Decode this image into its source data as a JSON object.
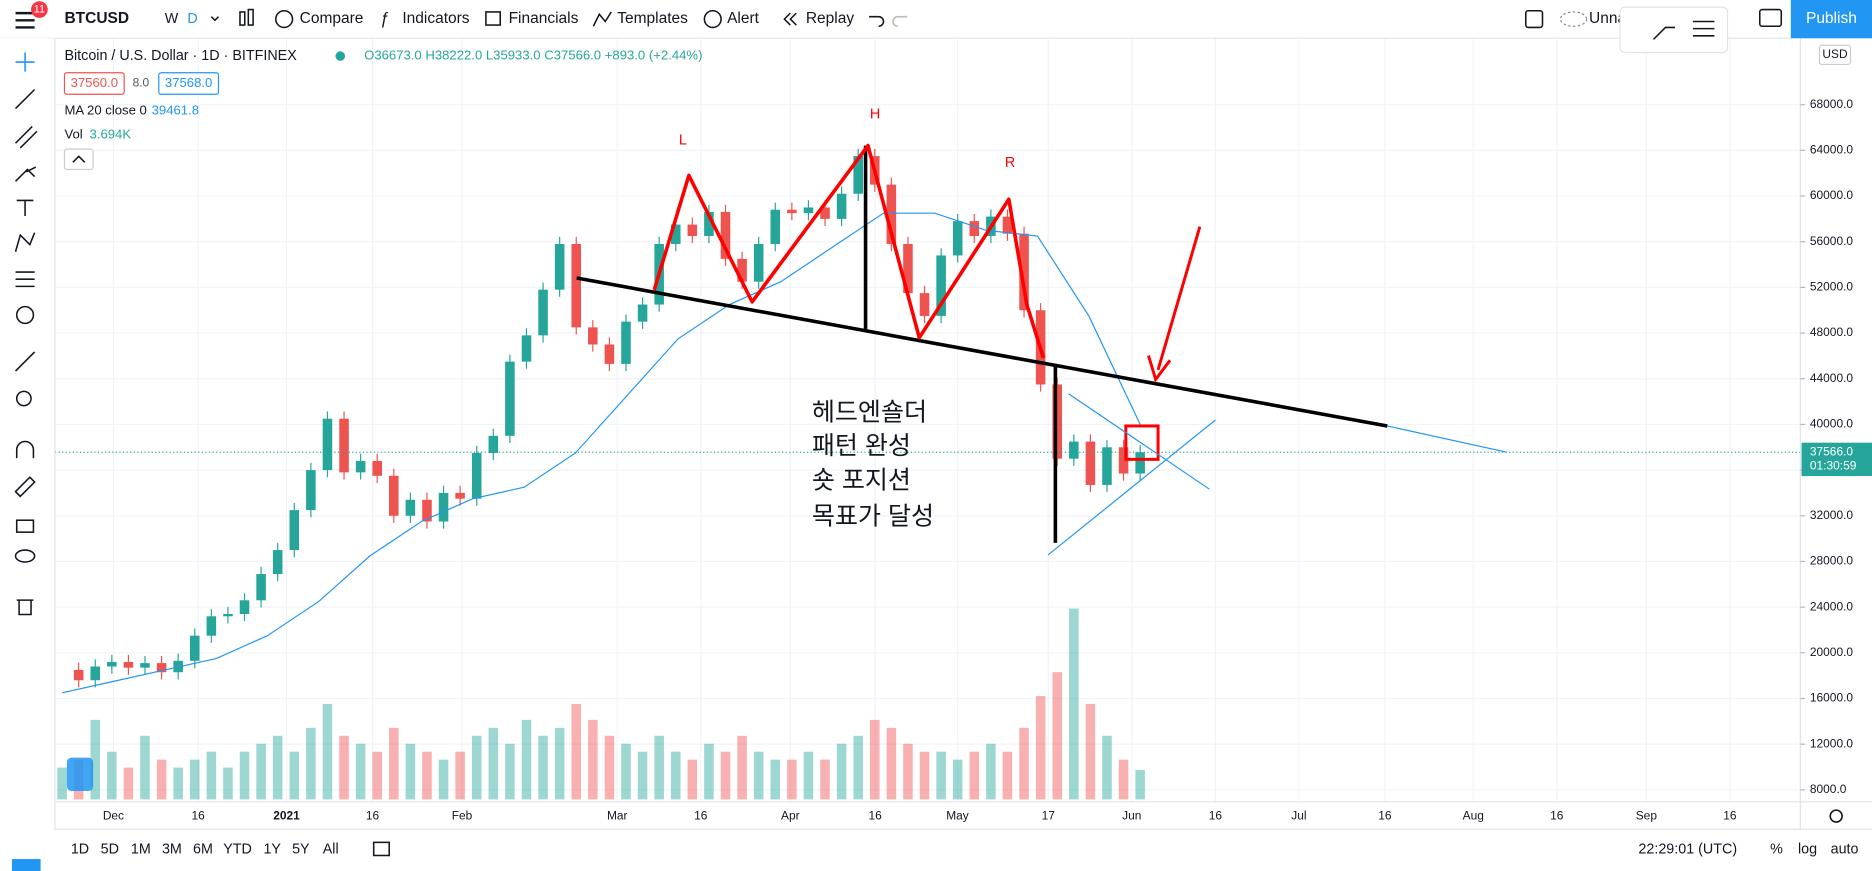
{
  "ui": {
    "badge": "11",
    "symbol": "BTCUSD",
    "interval_w": "W",
    "interval_d": "D",
    "compare": "Compare",
    "indicators": "Indicators",
    "financials": "Financials",
    "templates": "Templates",
    "alert": "Alert",
    "replay": "Replay",
    "layout_name": "Unna",
    "publish": "Publish",
    "legend_title": "Bitcoin / U.S. Dollar · 1D · BITFINEX",
    "ohlc": "O36673.0 H38222.0 L35933.0 C37566.0 +893.0 (+2.44%)",
    "bid": "37560.0",
    "spread": "8.0",
    "ask": "37568.0",
    "ma_label": "MA 20 close 0",
    "ma_value": "39461.8",
    "vol_label": "Vol",
    "vol_value": "3.694K",
    "currency": "USD",
    "countdown": "01:30:59",
    "ranges": [
      "1D",
      "5D",
      "1M",
      "3M",
      "6M",
      "YTD",
      "1Y",
      "5Y",
      "All"
    ],
    "clock": "22:29:01 (UTC)",
    "percent": "%",
    "log": "log",
    "auto": "auto",
    "annotation_letters": [
      "L",
      "H",
      "R"
    ],
    "annotation_text": [
      "헤드엔숄더",
      "패턴 완성",
      "숏 포지션",
      "목표가 달성"
    ]
  },
  "chart_data": {
    "type": "candlestick",
    "title": "BTCUSD 1D",
    "ylim": [
      6955,
      73823
    ],
    "yticks": [
      {
        "value": 8000,
        "label": "8000.0"
      },
      {
        "value": 12000,
        "label": "12000.0"
      },
      {
        "value": 16000,
        "label": "16000.0"
      },
      {
        "value": 20000,
        "label": "20000.0"
      },
      {
        "value": 24000,
        "label": "24000.0"
      },
      {
        "value": 28000,
        "label": "28000.0"
      },
      {
        "value": 32000,
        "label": "32000.0"
      },
      {
        "value": 36000,
        "label": "36000.0"
      },
      {
        "value": 40000,
        "label": "40000.0"
      },
      {
        "value": 44000,
        "label": "44000.0"
      },
      {
        "value": 48000,
        "label": "48000.0"
      },
      {
        "value": 52000,
        "label": "52000.0"
      },
      {
        "value": 56000,
        "label": "56000.0"
      },
      {
        "value": 60000,
        "label": "60000.0"
      },
      {
        "value": 64000,
        "label": "64000.0"
      },
      {
        "value": 68000,
        "label": "68000.0"
      }
    ],
    "x_tick_labels": [
      "Dec",
      "16",
      "2021",
      "16",
      "Feb",
      "Mar",
      "16",
      "Apr",
      "16",
      "May",
      "17",
      "Jun",
      "16",
      "Jul",
      "16",
      "Aug",
      "16",
      "Sep",
      "16"
    ],
    "last_price": {
      "value": 37566,
      "label": "37566.0"
    },
    "grid": true,
    "series": [
      {
        "name": "BTCUSD",
        "up_color": "#26a69a",
        "down_color": "#ef5350",
        "values": [
          18500,
          17600,
          18800,
          19200,
          18700,
          19100,
          18300,
          19300,
          21500,
          23200,
          23400,
          24600,
          26900,
          29000,
          32500,
          36000,
          40500,
          35800,
          36800,
          35500,
          32000,
          33400,
          31500,
          34000,
          33500,
          37500,
          39000,
          45500,
          47800,
          51800,
          55800,
          48500,
          47000,
          45300,
          49000,
          50500,
          55800,
          57500,
          56500,
          58600,
          54500,
          52500,
          55800,
          58800,
          58500,
          59000,
          58000,
          60200,
          63500,
          61000,
          55800,
          51500,
          49500,
          54800,
          57800,
          56500,
          58200,
          56700,
          50000,
          43500,
          37000,
          38500,
          34700,
          38000,
          35700,
          37566
        ]
      },
      {
        "name": "MA 20",
        "color": "#2196f3",
        "values": [
          16500,
          17500,
          18500,
          19500,
          21500,
          24500,
          28500,
          31500,
          33500,
          34500,
          37500,
          42500,
          47500,
          50500,
          52500,
          55500,
          58500,
          58500,
          57000,
          56500,
          49500,
          40000
        ]
      },
      {
        "name": "Vol",
        "values": [
          4,
          5,
          10,
          6,
          4,
          8,
          5,
          4,
          5,
          6,
          4,
          6,
          7,
          8,
          6,
          9,
          12,
          8,
          7,
          6,
          9,
          7,
          6,
          5,
          6,
          8,
          9,
          7,
          10,
          8,
          9,
          12,
          10,
          8,
          7,
          6,
          8,
          6,
          5,
          7,
          6,
          8,
          6,
          5,
          5,
          6,
          5,
          7,
          8,
          10,
          9,
          7,
          6,
          6,
          5,
          6,
          7,
          6,
          9,
          13,
          16,
          24,
          12,
          8,
          5,
          3.694
        ]
      }
    ]
  }
}
